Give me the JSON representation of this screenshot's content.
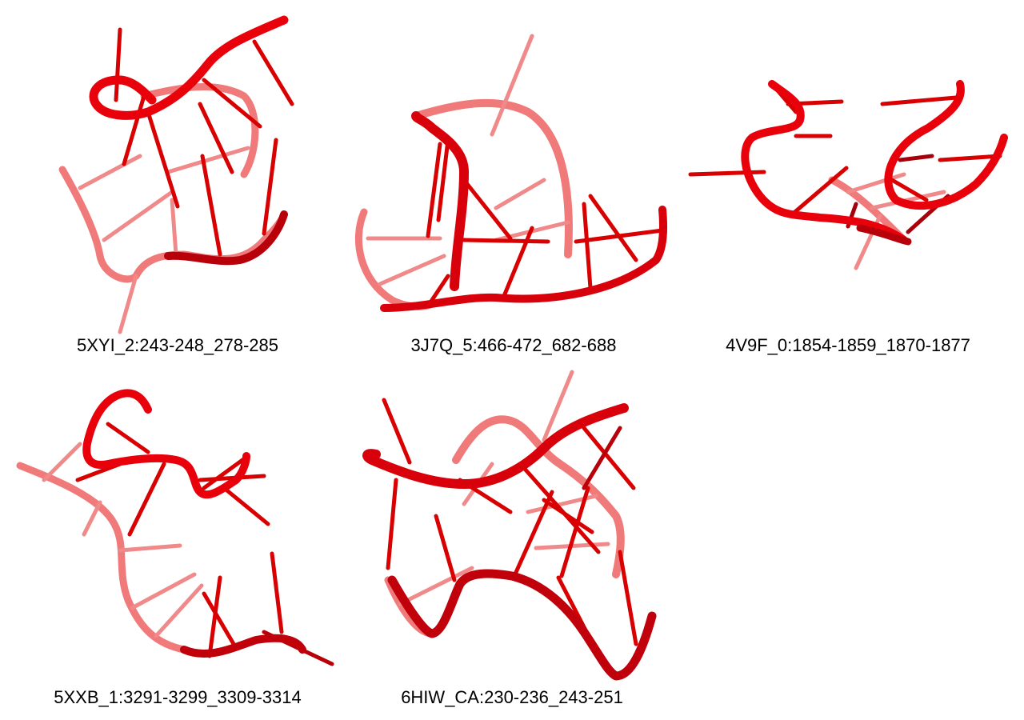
{
  "structures": [
    {
      "label": "5XYI_2:243-248_278-285"
    },
    {
      "label": "3J7Q_5:466-472_682-688"
    },
    {
      "label": "4V9F_0:1854-1859_1870-1877"
    },
    {
      "label": "5XXB_1:3291-3299_3309-3314"
    },
    {
      "label": "6HIW_CA:230-236_243-251"
    }
  ],
  "colors": {
    "strand_front": "#e8000b",
    "strand_back": "#f07a7a",
    "strand_dark": "#a8000a",
    "base_front": "#d80000",
    "base_back": "#f08a8a",
    "text": "#000000"
  }
}
